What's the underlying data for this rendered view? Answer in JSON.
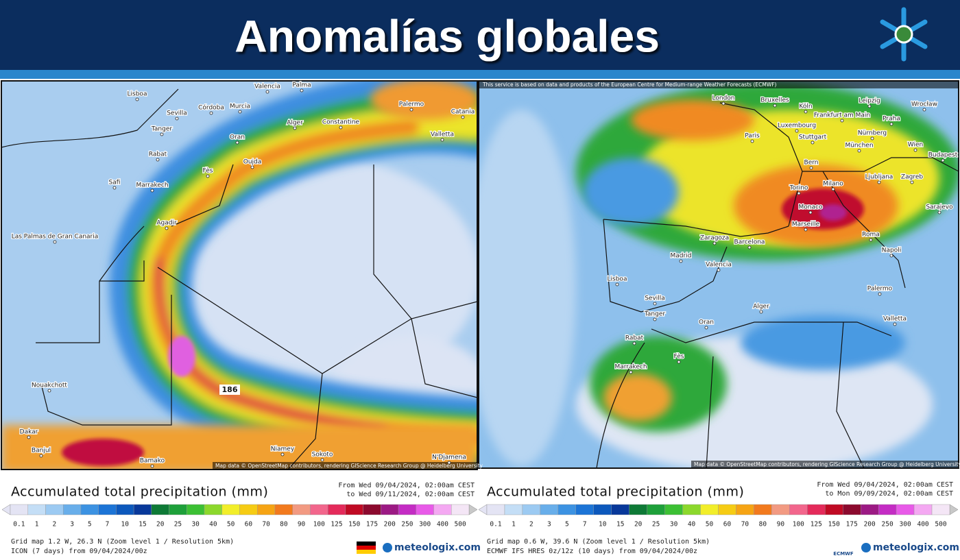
{
  "header": {
    "title": "Anomalías globales"
  },
  "scale": {
    "values": [
      0.1,
      1,
      2,
      3,
      5,
      7,
      10,
      15,
      20,
      25,
      30,
      40,
      50,
      60,
      70,
      80,
      90,
      100,
      125,
      150,
      175,
      200,
      250,
      300,
      400,
      500
    ],
    "colors": [
      "#e4e4f4",
      "#c4def6",
      "#9ccaf2",
      "#68aeea",
      "#3c92e2",
      "#1c74d6",
      "#0c58bc",
      "#08389a",
      "#0e7a36",
      "#1ea03a",
      "#3cc034",
      "#8cd82c",
      "#f2ee2a",
      "#f6cc14",
      "#f6a414",
      "#f27a1e",
      "#f29a82",
      "#f2668c",
      "#e42a5a",
      "#c00a24",
      "#8c0a2e",
      "#9c1a84",
      "#c42cc4",
      "#e85ae8",
      "#f4a8f2",
      "#f4e6f6"
    ]
  },
  "panels": [
    {
      "title": "Accumulated total precipitation (mm)",
      "from": "From Wed 09/04/2024, 02:00am CEST",
      "to": "to Wed 09/11/2024, 02:00am CEST",
      "grid": "Grid map 1.2 W, 26.3 N (Zoom level 1 / Resolution 5km)",
      "model": "ICON (7 days) from 09/04/2024/00z",
      "brand": "meteologix.com",
      "attribution": "Map data © OpenStreetMap contributors, rendering GIScience Research Group @ Heidelberg University",
      "max_label": "186",
      "cities": [
        "Lisboa",
        "Sevilla",
        "Córdoba",
        "Murcia",
        "Valencia",
        "Palma",
        "Alger",
        "Constantine",
        "Tanger",
        "Oran",
        "Rabat",
        "Fès",
        "Oujda",
        "Safi",
        "Marrakech",
        "Agadir",
        "Las Palmas de Gran Canaria",
        "Nouakchott",
        "Dakar",
        "Banjul",
        "Bamako",
        "Niamey",
        "Sokoto",
        "N'Djamena",
        "Palermo",
        "Catania",
        "Valletta"
      ]
    },
    {
      "title": "Accumulated total precipitation (mm)",
      "from": "From Wed 09/04/2024, 02:00am CEST",
      "to": "to Mon 09/09/2024, 02:00am CEST",
      "grid": "Grid map 0.6 W, 39.6 N (Zoom level 1 / Resolution 5km)",
      "model": "ECMWF IFS HRES 0z/12z (10 days) from 09/04/2024/00z",
      "brand": "meteologix.com",
      "logo": "ECMWF",
      "note": "This service is based on data and products of the European Centre for Medium-range Weather Forecasts (ECMWF)",
      "attribution": "Map data © OpenStreetMap contributors, rendering GIScience Research Group @ Heidelberg University",
      "cities": [
        "London",
        "Bruxelles",
        "Köln",
        "Frankfurt am Main",
        "Leipzig",
        "Praha",
        "Wrocław",
        "Luxembourg",
        "Paris",
        "Stuttgart",
        "Nürnberg",
        "München",
        "Wien",
        "Budapest",
        "Bern",
        "Ljubljana",
        "Zagreb",
        "Torino",
        "Milano",
        "Monaco",
        "Marseille",
        "Zaragoza",
        "Barcelona",
        "Madrid",
        "Valencia",
        "Lisboa",
        "Sevilla",
        "Roma",
        "Napoli",
        "Sarajevo",
        "Alger",
        "Palermo",
        "Valletta",
        "Tanger",
        "Oran",
        "Rabat",
        "Fès",
        "Marrakech"
      ]
    }
  ]
}
